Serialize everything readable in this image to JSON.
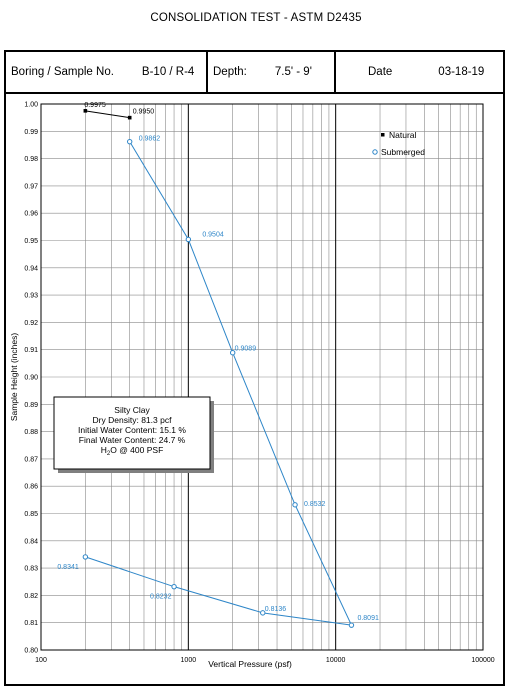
{
  "page": {
    "title": "CONSOLIDATION TEST - ASTM D2435"
  },
  "header": {
    "boring_label": "Boring / Sample No.",
    "boring_value": "B-10 / R-4",
    "depth_label": "Depth:",
    "depth_value": "7.5' - 9'",
    "date_label": "Date",
    "date_value": "03-18-19"
  },
  "info_box": {
    "lines": [
      "Silty Clay",
      "Dry Density: 81.3 pcf",
      "Initial Water Content: 15.1 %",
      "Final Water Content: 24.7 %"
    ],
    "h2o_h": "H",
    "h2o_sub": "2",
    "h2o_rest": "O @ 400 PSF"
  },
  "chart_data": {
    "type": "scatter",
    "xlabel": "Vertical Pressure  (psf)",
    "ylabel": "Sample Height (inches)",
    "x_scale": "log",
    "xlim": [
      100,
      100000
    ],
    "ylim": [
      0.8,
      1.0
    ],
    "x_ticks": [
      100,
      1000,
      10000,
      100000
    ],
    "x_tick_labels": [
      "100",
      "1000",
      "10000",
      "100000"
    ],
    "y_ticks": [
      0.8,
      0.81,
      0.82,
      0.83,
      0.84,
      0.85,
      0.86,
      0.87,
      0.88,
      0.89,
      0.9,
      0.91,
      0.92,
      0.93,
      0.94,
      0.95,
      0.96,
      0.97,
      0.98,
      0.99,
      1.0
    ],
    "y_tick_labels": [
      "0.80",
      "0.81",
      "0.82",
      "0.83",
      "0.84",
      "0.85",
      "0.86",
      "0.87",
      "0.88",
      "0.89",
      "0.90",
      "0.91",
      "0.92",
      "0.93",
      "0.94",
      "0.95",
      "0.96",
      "0.97",
      "0.98",
      "0.99",
      "1.00"
    ],
    "grid": true,
    "legend_position": "top-right",
    "series": [
      {
        "name": "Natural",
        "color": "#000000",
        "marker": "square",
        "points": [
          {
            "x": 200,
            "y": 0.9975,
            "label": "0.9975"
          },
          {
            "x": 400,
            "y": 0.995,
            "label": "0.9950"
          }
        ]
      },
      {
        "name": "Submerged",
        "color": "#2e86c8",
        "marker": "circle",
        "points": [
          {
            "x": 400,
            "y": 0.9862,
            "label": "0.9862"
          },
          {
            "x": 1000,
            "y": 0.9504,
            "label": "0.9504"
          },
          {
            "x": 2000,
            "y": 0.9089,
            "label": "0.9089"
          },
          {
            "x": 5300,
            "y": 0.8532,
            "label": "0.8532"
          },
          {
            "x": 12800,
            "y": 0.8091,
            "label": "0.8091"
          },
          {
            "x": 3200,
            "y": 0.8136,
            "label": "0.8136"
          },
          {
            "x": 800,
            "y": 0.8232,
            "label": "0.8232"
          },
          {
            "x": 200,
            "y": 0.8341,
            "label": "0.8341"
          }
        ]
      }
    ]
  }
}
